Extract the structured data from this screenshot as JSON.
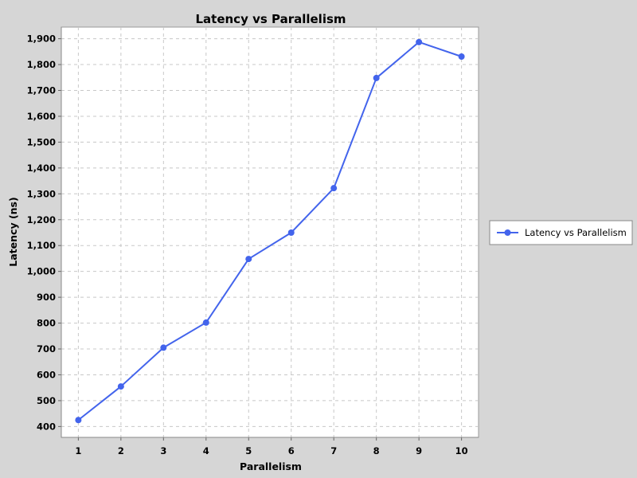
{
  "colors": {
    "background": "#d6d6d6",
    "plot_background": "#ffffff",
    "grid": "#c8c8c8",
    "series": "#4364ec"
  },
  "chart_data": {
    "type": "line",
    "title": "Latency vs Parallelism",
    "xlabel": "Parallelism",
    "ylabel": "Latency (ns)",
    "x": [
      1,
      2,
      3,
      4,
      5,
      6,
      7,
      8,
      9,
      10
    ],
    "x_tick_labels": [
      "1",
      "2",
      "3",
      "4",
      "5",
      "6",
      "7",
      "8",
      "9",
      "10"
    ],
    "y_ticks": [
      400,
      500,
      600,
      700,
      800,
      900,
      1000,
      1100,
      1200,
      1300,
      1400,
      1500,
      1600,
      1700,
      1800,
      1900
    ],
    "y_tick_labels": [
      "400",
      "500",
      "600",
      "700",
      "800",
      "900",
      "1,000",
      "1,100",
      "1,200",
      "1,300",
      "1,400",
      "1,500",
      "1,600",
      "1,700",
      "1,800",
      "1,900"
    ],
    "xlim": [
      0.6,
      10.4
    ],
    "ylim": [
      358,
      1945
    ],
    "grid": true,
    "legend_position": "right",
    "series": [
      {
        "name": "Latency vs Parallelism",
        "color": "#4364ec",
        "marker": "circle",
        "values": [
          425,
          555,
          705,
          802,
          1048,
          1150,
          1322,
          1748,
          1887,
          1831
        ]
      }
    ]
  }
}
